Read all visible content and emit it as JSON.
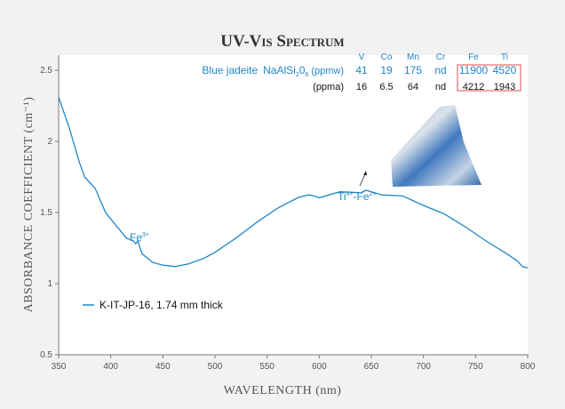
{
  "chart_data": {
    "type": "line",
    "title": "UV-Vis Spectrum",
    "xlabel": "WAVELENGTH (nm)",
    "ylabel": "ABSORBANCE COEFFICIENT (cm⁻¹)",
    "xlim": [
      350,
      800
    ],
    "ylim": [
      0.5,
      2.6
    ],
    "xticks": [
      350,
      400,
      450,
      500,
      550,
      600,
      650,
      700,
      750,
      800
    ],
    "yticks": [
      0.5,
      1,
      1.5,
      2,
      2.5
    ],
    "ytick_labels": [
      "0.5",
      "1",
      "1.5",
      "2",
      "2.5"
    ],
    "grid": false,
    "legend_placement": "lower-left",
    "series": [
      {
        "name": "K-IT-JP-16, 1.74 mm thick",
        "color": "#1f86c8",
        "x": [
          350,
          360,
          370,
          375,
          385,
          395,
          405,
          415,
          422,
          424,
          426,
          430,
          440,
          450,
          462,
          475,
          490,
          500,
          520,
          540,
          560,
          580,
          590,
          595,
          600,
          620,
          640,
          645,
          660,
          680,
          700,
          720,
          740,
          760,
          780,
          790,
          795,
          800
        ],
        "y": [
          2.31,
          2.1,
          1.85,
          1.75,
          1.67,
          1.5,
          1.41,
          1.32,
          1.3,
          1.28,
          1.3,
          1.21,
          1.15,
          1.13,
          1.12,
          1.14,
          1.18,
          1.22,
          1.32,
          1.43,
          1.53,
          1.6,
          1.63,
          1.61,
          1.61,
          1.64,
          1.645,
          1.65,
          1.63,
          1.61,
          1.55,
          1.49,
          1.4,
          1.3,
          1.21,
          1.16,
          1.12,
          1.11
        ]
      }
    ],
    "annotations": [
      {
        "text": "Fe",
        "sup": "3+"
      },
      {
        "text1": "Ti",
        "sup1": "4+",
        "text2": "-Fe",
        "sup2": "2+"
      }
    ]
  },
  "inset_table": {
    "sample_label": "Blue jadeite",
    "formula": "NaAlSi",
    "formula_sub1": "2",
    "formula_mid": "0",
    "formula_sub2": "6",
    "columns": [
      "V",
      "Co",
      "Mn",
      "Cr",
      "Fe",
      "Ti"
    ],
    "rows": [
      {
        "unit": "(ppmw)",
        "values": [
          "41",
          "19",
          "175",
          "nd",
          "11900",
          "4520"
        ]
      },
      {
        "unit": "(ppma)",
        "values": [
          "16",
          "6.5",
          "64",
          "nd",
          "4212",
          "1943"
        ]
      }
    ],
    "highlight_color": "#e8474a"
  }
}
